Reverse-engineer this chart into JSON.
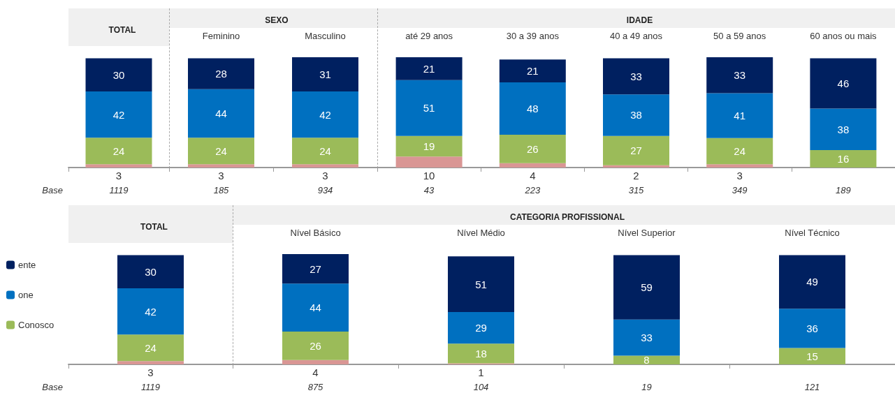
{
  "chart_data": [
    {
      "type": "bar",
      "title": "TOTAL",
      "categories": [
        null
      ],
      "stacked": true,
      "data_labels": true,
      "ylim": [
        0,
        100
      ],
      "tick_labels": "x",
      "annotations": [
        "Base",
        "1119"
      ],
      "series": [
        {
          "color": "#d99694",
          "values": [
            3
          ]
        },
        {
          "color": "#9bbb59",
          "values": [
            24
          ]
        },
        {
          "color": "#0070c0",
          "values": [
            42
          ]
        },
        {
          "color": "#002060",
          "values": [
            30
          ]
        }
      ]
    },
    {
      "type": "bar",
      "title": "SEXO",
      "categories": [
        "Feminino",
        "Masculino"
      ],
      "stacked": true,
      "data_labels": true,
      "ylim": [
        0,
        100
      ],
      "tick_labels": "x",
      "annotations": [
        "185",
        "934"
      ],
      "series": [
        {
          "color": "#d99694",
          "values": [
            3,
            3
          ]
        },
        {
          "color": "#9bbb59",
          "values": [
            24,
            24
          ]
        },
        {
          "color": "#0070c0",
          "values": [
            44,
            42
          ]
        },
        {
          "color": "#002060",
          "values": [
            28,
            31
          ]
        }
      ]
    },
    {
      "type": "bar",
      "title": "IDADE",
      "categories": [
        "até 29 anos",
        "30 a 39 anos",
        "40 a 49 anos",
        "50 a 59 anos",
        "60 anos ou mais"
      ],
      "stacked": true,
      "data_labels": true,
      "ylim": [
        0,
        101
      ],
      "tick_labels": "x",
      "annotations": [
        "43",
        "223",
        "315",
        "349",
        "189"
      ],
      "series": [
        {
          "color": "#d99694",
          "values": [
            10,
            4,
            2,
            3,
            null
          ]
        },
        {
          "color": "#9bbb59",
          "values": [
            19,
            26,
            27,
            24,
            16
          ]
        },
        {
          "color": "#0070c0",
          "values": [
            51,
            48,
            38,
            41,
            38
          ]
        },
        {
          "color": "#002060",
          "values": [
            21,
            21,
            33,
            33,
            46
          ]
        }
      ]
    },
    {
      "type": "bar",
      "title": "TOTAL",
      "categories": [
        null
      ],
      "stacked": true,
      "data_labels": true,
      "ylim": [
        0,
        100
      ],
      "tick_labels": "x",
      "legend": "left",
      "annotations": [
        "Base",
        "1119"
      ],
      "series": [
        {
          "color": "#d99694",
          "values": [
            3
          ]
        },
        {
          "name": "Conosco",
          "color": "#9bbb59",
          "values": [
            24
          ]
        },
        {
          "name": "one",
          "color": "#0070c0",
          "values": [
            42
          ]
        },
        {
          "name": "ente",
          "color": "#002060",
          "values": [
            30
          ]
        }
      ]
    },
    {
      "type": "bar",
      "title": "CATEGORIA PROFISSIONAL",
      "categories": [
        "Nível Básico",
        "Nível Médio",
        "Nível Superior",
        "Nível Técnico"
      ],
      "stacked": true,
      "data_labels": true,
      "ylim": [
        0,
        101
      ],
      "tick_labels": "x",
      "annotations": [
        "875",
        "104",
        "19",
        "121"
      ],
      "series": [
        {
          "color": "#d99694",
          "values": [
            4,
            1,
            null,
            null
          ]
        },
        {
          "color": "#9bbb59",
          "values": [
            26,
            18,
            8,
            15
          ]
        },
        {
          "color": "#0070c0",
          "values": [
            44,
            29,
            33,
            36
          ]
        },
        {
          "color": "#002060",
          "values": [
            27,
            51,
            59,
            49
          ]
        }
      ]
    }
  ]
}
